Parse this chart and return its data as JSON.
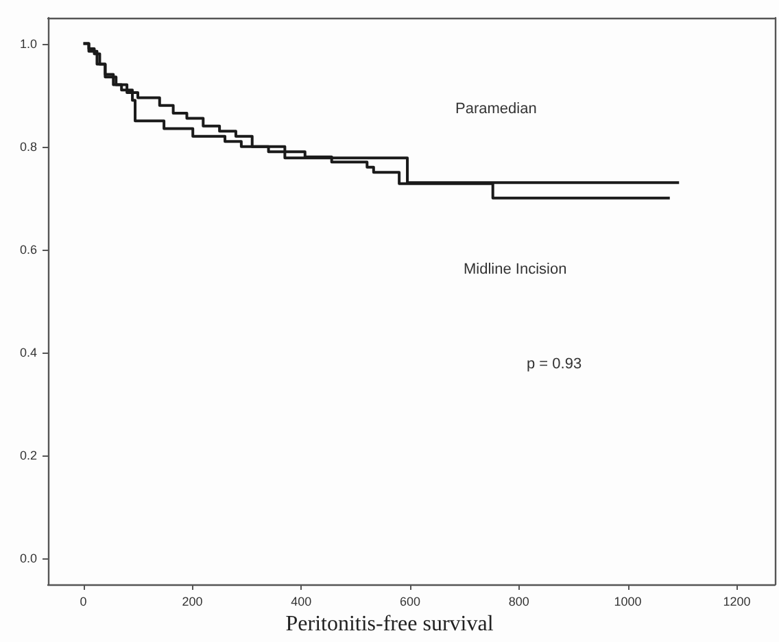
{
  "chart_data": {
    "type": "step",
    "xlabel": "Peritonitis-free survival",
    "annotations": [
      "Paramedian",
      "Midline Incision",
      "p = 0.93"
    ],
    "series": [
      {
        "color": "#1a1a1a",
        "x": [
          0,
          10,
          20,
          30,
          40,
          55,
          70,
          90,
          95,
          148,
          201,
          260,
          290,
          370,
          595,
          1094
        ],
        "values": [
          1.0,
          0.99,
          0.98,
          0.96,
          0.94,
          0.92,
          0.91,
          0.89,
          0.85,
          0.835,
          0.82,
          0.81,
          0.8,
          0.778,
          0.73,
          0.73
        ]
      },
      {
        "color": "#1a1a1a",
        "x": [
          0,
          10,
          25,
          40,
          60,
          80,
          100,
          140,
          165,
          190,
          220,
          250,
          280,
          310,
          340,
          407,
          456,
          521,
          533,
          580,
          752,
          1077
        ],
        "values": [
          1.0,
          0.985,
          0.96,
          0.935,
          0.92,
          0.905,
          0.895,
          0.88,
          0.865,
          0.855,
          0.84,
          0.83,
          0.82,
          0.8,
          0.79,
          0.78,
          0.77,
          0.76,
          0.75,
          0.728,
          0.7,
          0.7
        ]
      }
    ],
    "xlim": [
      -65,
      1270
    ],
    "xticks": [
      0,
      200,
      400,
      600,
      800,
      1000,
      1200
    ],
    "ylim": [
      -0.05,
      1.05
    ],
    "yticks": [
      {
        "value": 0,
        "label": "0.0"
      },
      {
        "value": 0.2,
        "label": "0.2"
      },
      {
        "value": 0.4,
        "label": "0.4"
      },
      {
        "value": 0.6,
        "label": "0.6"
      },
      {
        "value": 0.8,
        "label": "0.8"
      },
      {
        "value": 1,
        "label": "1.0"
      }
    ],
    "marker": "none",
    "line_style": "solid"
  }
}
